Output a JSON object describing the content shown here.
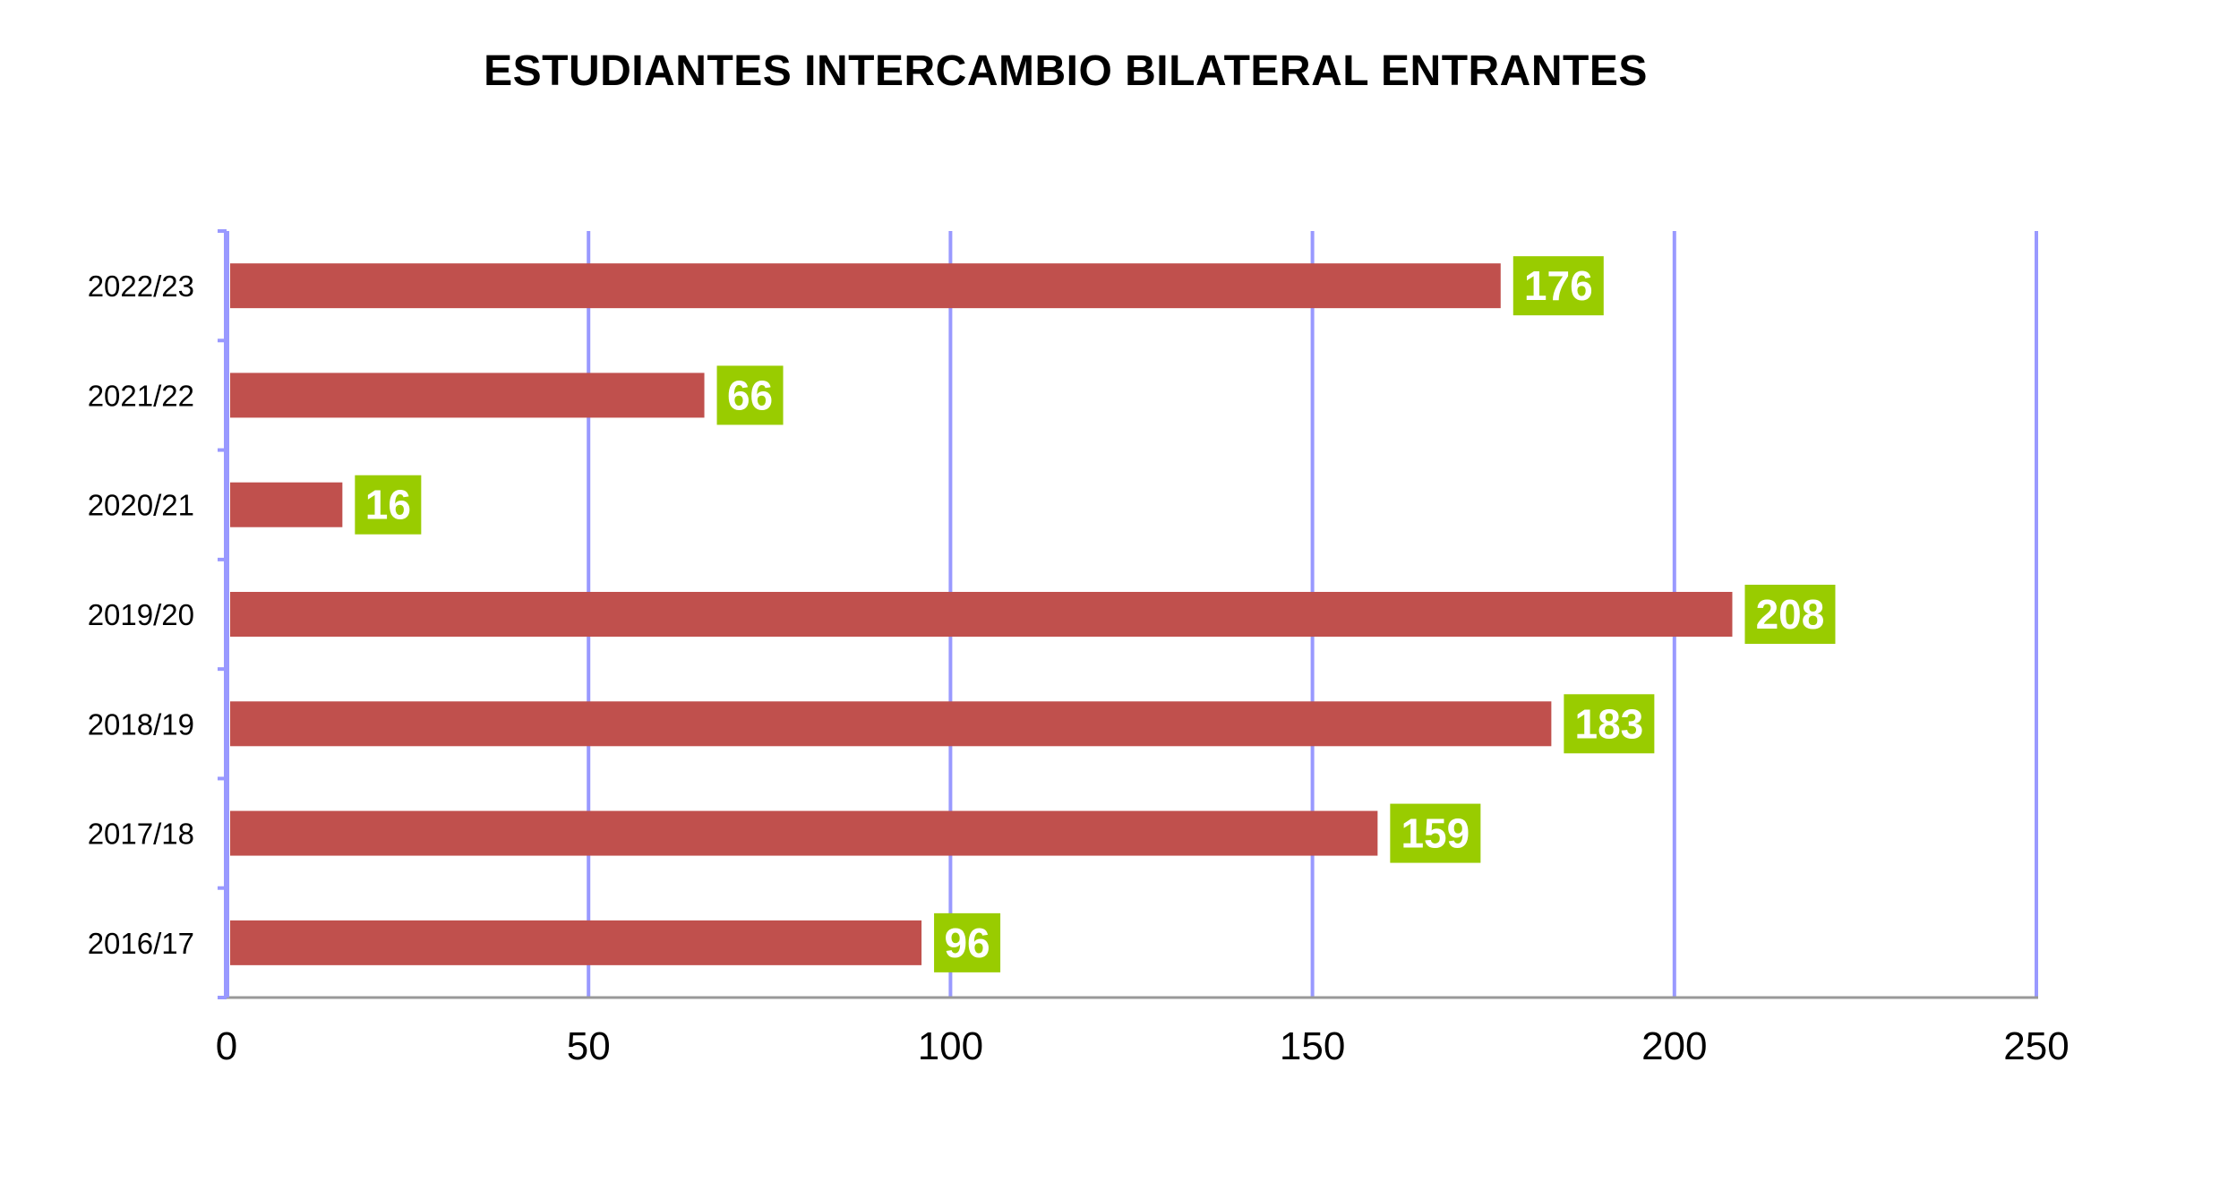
{
  "chart_data": {
    "type": "bar",
    "orientation": "horizontal",
    "title": "ESTUDIANTES INTERCAMBIO BILATERAL ENTRANTES",
    "categories": [
      "2022/23",
      "2021/22",
      "2020/21",
      "2019/20",
      "2018/19",
      "2017/18",
      "2016/17"
    ],
    "values": [
      176,
      66,
      16,
      208,
      183,
      159,
      96
    ],
    "data_labels": [
      "176",
      "66",
      "16",
      "208",
      "183",
      "159",
      "96"
    ],
    "xlim": [
      0,
      250
    ],
    "x_ticks": [
      0,
      50,
      100,
      150,
      200,
      250
    ],
    "x_tick_labels": [
      "0",
      "50",
      "100",
      "150",
      "200",
      "250"
    ],
    "xlabel": "",
    "ylabel": "",
    "grid": "vertical",
    "legend": "none",
    "colors": {
      "bar": "#c0504d",
      "data_label_bg": "#99cc00",
      "data_label_text": "#ffffff",
      "grid": "#9999ff",
      "axis": "#999999"
    }
  }
}
